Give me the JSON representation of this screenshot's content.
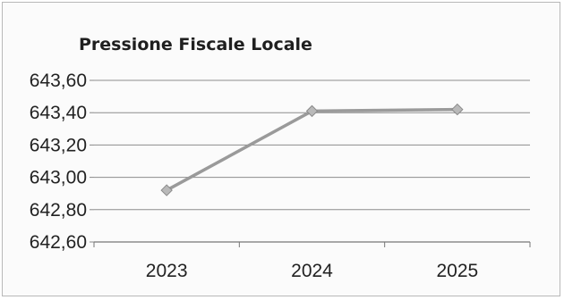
{
  "chart_data": {
    "type": "line",
    "title": "Pressione Fiscale Locale",
    "categories": [
      "2023",
      "2024",
      "2025"
    ],
    "series": [
      {
        "values": [
          642.92,
          643.41,
          643.42
        ]
      }
    ],
    "ylim": [
      642.6,
      643.6
    ],
    "yticks": [
      "642,60",
      "642,80",
      "643,00",
      "643,20",
      "643,40",
      "643,60"
    ],
    "xlabel": "",
    "ylabel": "",
    "grid": true,
    "legend": "none",
    "colors": {
      "line": "#9a9a9a",
      "marker": "#b9b9b9",
      "grid": "#8c8c8c"
    }
  }
}
